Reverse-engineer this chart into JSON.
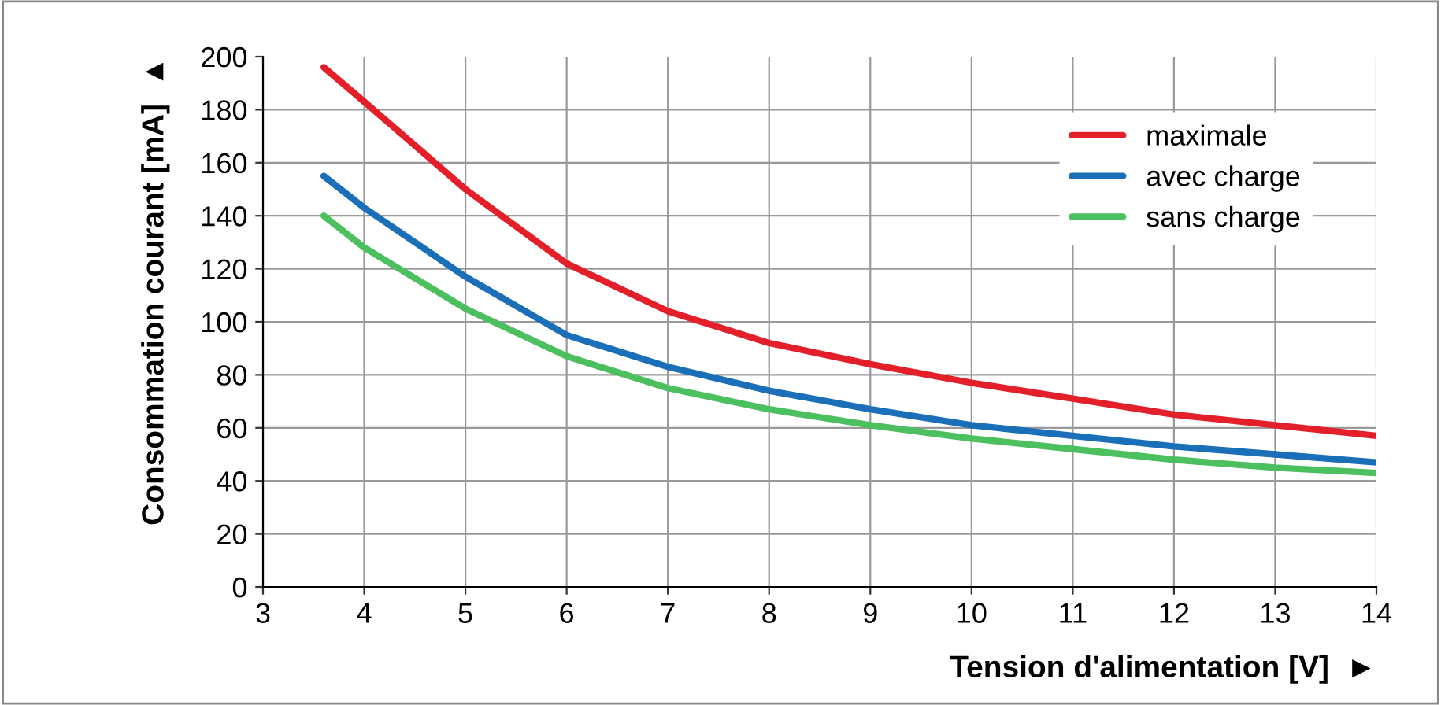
{
  "chart_data": {
    "type": "line",
    "xlabel": "Tension d'alimentation [V]  ►",
    "ylabel": "Consommation courant [mA]  ▲",
    "x": [
      3.6,
      4,
      5,
      6,
      7,
      8,
      9,
      10,
      11,
      12,
      13,
      14
    ],
    "series": [
      {
        "name": "maximale",
        "color": "#e3202a",
        "values": [
          196,
          183,
          150,
          122,
          104,
          92,
          84,
          77,
          71,
          65,
          61,
          57
        ]
      },
      {
        "name": "avec charge",
        "color": "#1a6fb8",
        "values": [
          155,
          143,
          117,
          95,
          83,
          74,
          67,
          61,
          57,
          53,
          50,
          47
        ]
      },
      {
        "name": "sans charge",
        "color": "#4cbf5e",
        "values": [
          140,
          128,
          105,
          87,
          75,
          67,
          61,
          56,
          52,
          48,
          45,
          43
        ]
      }
    ],
    "xlim": [
      3,
      14
    ],
    "xticks": [
      3,
      4,
      5,
      6,
      7,
      8,
      9,
      10,
      11,
      12,
      13,
      14
    ],
    "ylim": [
      0,
      200
    ],
    "yticks": [
      0,
      20,
      40,
      60,
      80,
      100,
      120,
      140,
      160,
      180,
      200
    ],
    "grid": true,
    "legend": "top right",
    "marker": "none",
    "line_style": "solid"
  }
}
